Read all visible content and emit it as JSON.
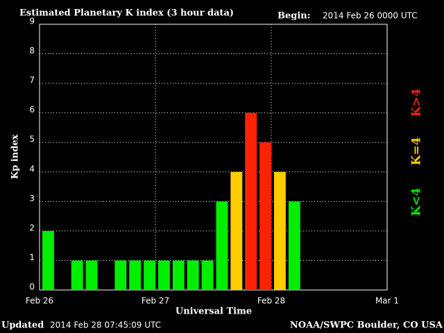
{
  "chart_data": {
    "type": "bar",
    "title": "Estimated Planetary K index (3 hour data)",
    "begin_label": "Begin:",
    "begin_value": "2014 Feb 26 0000 UTC",
    "xlabel": "Universal Time",
    "ylabel": "Kp index",
    "updated_label": "Updated",
    "updated_value": "2014 Feb 28 07:45:09 UTC",
    "source": "NOAA/SWPC Boulder, CO USA",
    "x": [
      0,
      3,
      6,
      9,
      12,
      15,
      18,
      21,
      24,
      27,
      30,
      33,
      36,
      39,
      42,
      45,
      48,
      51
    ],
    "bar_width": 3,
    "values": [
      2,
      null,
      1,
      1,
      null,
      1,
      1,
      1,
      1,
      1,
      1,
      1,
      3,
      4,
      6,
      5,
      4,
      3
    ],
    "colors": [
      "#00ee00",
      null,
      "#00ee00",
      "#00ee00",
      null,
      "#00ee00",
      "#00ee00",
      "#00ee00",
      "#00ee00",
      "#00ee00",
      "#00ee00",
      "#00ee00",
      "#00ee00",
      "#ffcc00",
      "#ff2200",
      "#ff2200",
      "#ffcc00",
      "#00ee00"
    ],
    "xlim": [
      0,
      72
    ],
    "xticks": [
      {
        "value": 0,
        "label": "Feb 26"
      },
      {
        "value": 24,
        "label": "Feb 27"
      },
      {
        "value": 48,
        "label": "Feb 28"
      },
      {
        "value": 72,
        "label": "Mar 1"
      }
    ],
    "ylim": [
      0,
      9
    ],
    "yticks": [
      0,
      1,
      2,
      3,
      4,
      5,
      6,
      7,
      8,
      9
    ],
    "grid": true,
    "legend": [
      {
        "label": "K>4",
        "color": "#ff2200"
      },
      {
        "label": "K=4",
        "color": "#ffcc00"
      },
      {
        "label": "K<4",
        "color": "#00ee00"
      }
    ]
  }
}
